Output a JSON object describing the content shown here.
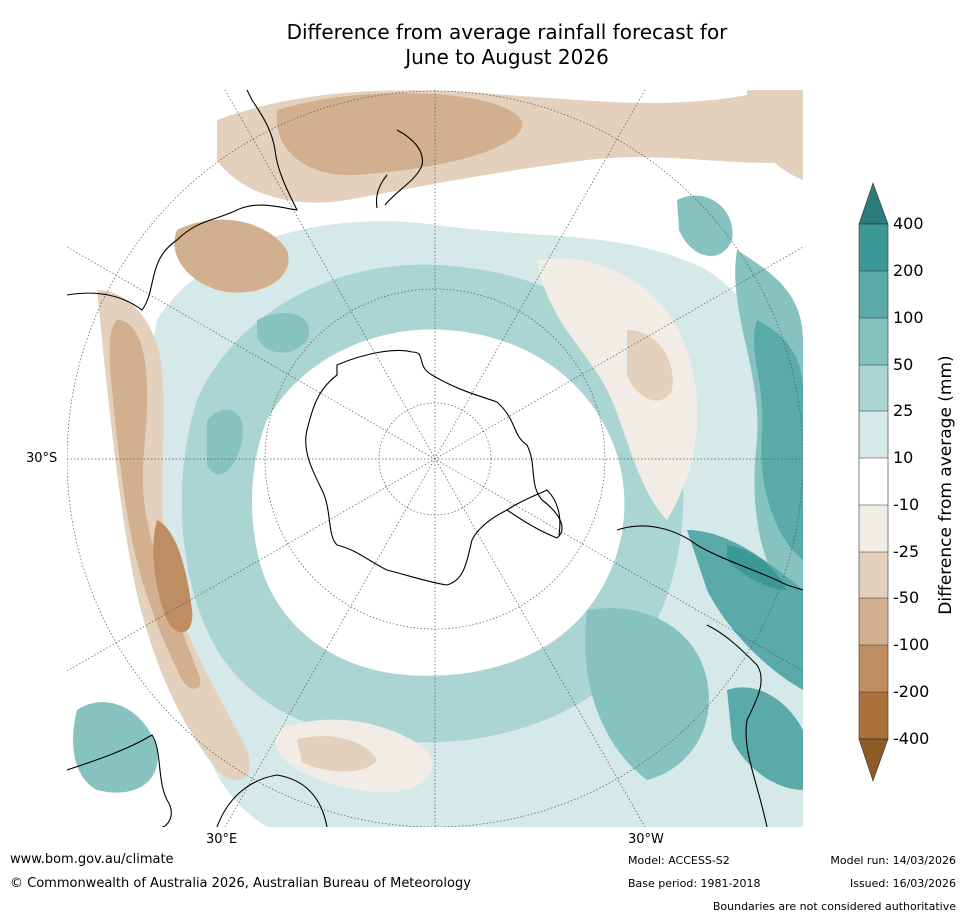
{
  "title": {
    "line1": "Difference from average rainfall forecast for",
    "line2": "June to August 2026"
  },
  "map": {
    "projection": "south-polar-stereographic",
    "lat_label": "30°S",
    "lon_labels": {
      "east": "30°E",
      "west": "30°W"
    }
  },
  "colorbar": {
    "label": "Difference from average (mm)",
    "ticks": [
      "400",
      "200",
      "100",
      "50",
      "25",
      "10",
      "-10",
      "-25",
      "-50",
      "-100",
      "-200",
      "-400"
    ],
    "colors": {
      "extend_top": "#2a7d7a",
      "gt200": "#3a9896",
      "c100_200": "#5aaaa9",
      "c50_100": "#85c2c0",
      "c25_50": "#abd5d3",
      "c10_25": "#d5e9e8",
      "neutral": "#ffffff",
      "m10_25": "#f2ece6",
      "m25_50": "#e3d0bd",
      "m50_100": "#d2b08f",
      "m100_200": "#be8e62",
      "lt200": "#aa713b",
      "extend_bottom": "#8e5b26"
    }
  },
  "footer": {
    "website": "www.bom.gov.au/climate",
    "copyright": "© Commonwealth of Australia 2026, Australian Bureau of Meteorology",
    "model": "Model: ACCESS-S2",
    "base_period": "Base period: 1981-2018",
    "model_run": "Model run: 14/03/2026",
    "issued": "Issued: 16/03/2026",
    "disclaimer": "Boundaries are not considered authoritative"
  }
}
